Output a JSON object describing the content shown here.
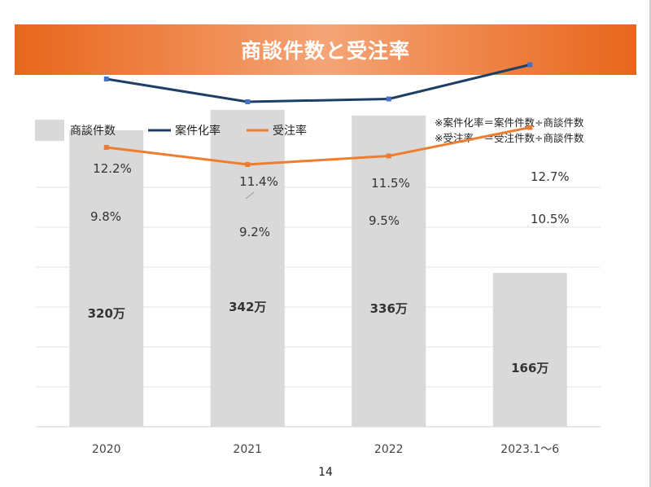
{
  "header": {
    "title": "商談件数と受注率"
  },
  "notes": [
    "※案件化率＝案件件数÷商談件数",
    "※受注率　＝受注件数÷商談件数"
  ],
  "page_number": "14",
  "chart_data": {
    "type": "bar",
    "categories": [
      "2020",
      "2021",
      "2022",
      "2023.1～6"
    ],
    "ylim": [
      0,
      400
    ],
    "grid": true,
    "legend_position": "top-left",
    "series": [
      {
        "name": "商談件数",
        "type": "bar",
        "axis": "left",
        "color": "#d9d9d9",
        "values": [
          320,
          342,
          336,
          166
        ],
        "labels": [
          "320万",
          "342万",
          "336万",
          "166万"
        ]
      },
      {
        "name": "案件化率",
        "type": "line",
        "axis": "right",
        "color": "#1f3e64",
        "marker_color": "#4472c4",
        "values": [
          12.2,
          11.4,
          11.5,
          12.7
        ],
        "labels": [
          "12.2%",
          "11.4%",
          "11.5%",
          "12.7%"
        ]
      },
      {
        "name": "受注率",
        "type": "line",
        "axis": "right",
        "color": "#ed7d31",
        "values": [
          9.8,
          9.2,
          9.5,
          10.5
        ],
        "labels": [
          "9.8%",
          "9.2%",
          "9.5%",
          "10.5%"
        ]
      }
    ],
    "y2lim": [
      0,
      20
    ]
  }
}
